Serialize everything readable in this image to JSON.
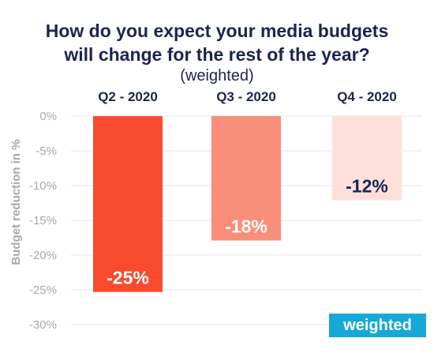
{
  "chart_data": {
    "type": "bar",
    "title_lines": [
      "How do you expect your media budgets",
      "will change for the rest of the year?"
    ],
    "subtitle": "(weighted)",
    "ylabel": "Budget reduction in %",
    "categories": [
      "Q2 - 2020",
      "Q3 - 2020",
      "Q4 - 2020"
    ],
    "values": [
      -25.3,
      -17.9,
      -12.1
    ],
    "data_labels": [
      "-25%",
      "-18%",
      "-12%"
    ],
    "ylim": [
      -30,
      0
    ],
    "yticks": [
      0,
      -5,
      -10,
      -15,
      -20,
      -25,
      -30
    ],
    "ytick_labels": [
      "0%",
      "-5%",
      "-10%",
      "-15%",
      "-20%",
      "-25%",
      "-30%"
    ],
    "grid": true,
    "colors": [
      "#f84b2d",
      "#fa8f79",
      "#fde0d9"
    ],
    "label_colors": [
      "#ffffff",
      "#ffffff",
      "#1b2550"
    ],
    "badge": "weighted"
  }
}
